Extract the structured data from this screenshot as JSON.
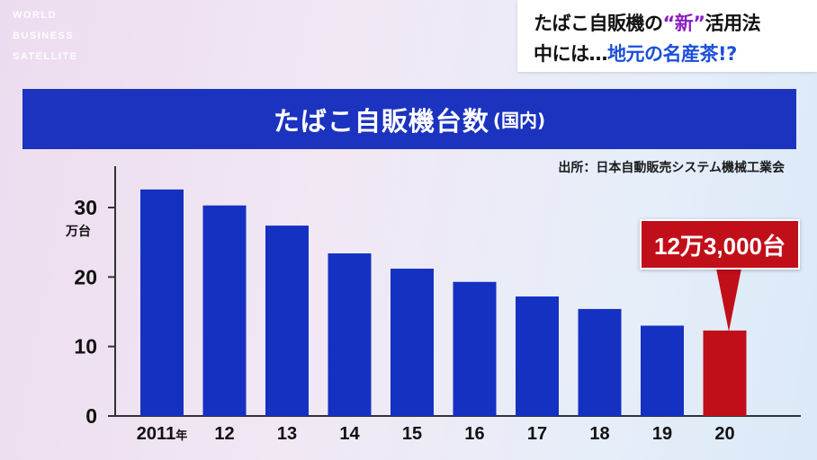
{
  "watermark": {
    "line1": "WORLD",
    "line2": "BUSINESS",
    "line3": "SATELLITE"
  },
  "caption": {
    "line1_prefix": "たばこ自販機の",
    "line1_highlight": "“新”",
    "line1_suffix": "活用法",
    "line2_prefix": "中には…",
    "line2_highlight": "地元の名産茶!?"
  },
  "banner": {
    "title": "たばこ自販機台数",
    "subtitle": "(国内)"
  },
  "source": "出所：日本自動販売システム機械工業会",
  "callout": {
    "text": "12万3,000台"
  },
  "colors": {
    "bar": "#1531c2",
    "highlight_bar": "#c10f1a",
    "banner": "#1c33bf"
  },
  "chart_data": {
    "type": "bar",
    "title": "たばこ自販機台数(国内)",
    "ylabel": "万台",
    "ylim": [
      0,
      36
    ],
    "yticks": [
      "0",
      "10",
      "20",
      "30"
    ],
    "categories": [
      "2011年",
      "12",
      "13",
      "14",
      "15",
      "16",
      "17",
      "18",
      "19",
      "20"
    ],
    "values": [
      32.6,
      30.3,
      27.4,
      23.4,
      21.2,
      19.3,
      17.2,
      15.4,
      13.0,
      12.3
    ],
    "highlight_index": 9,
    "grid": false
  }
}
